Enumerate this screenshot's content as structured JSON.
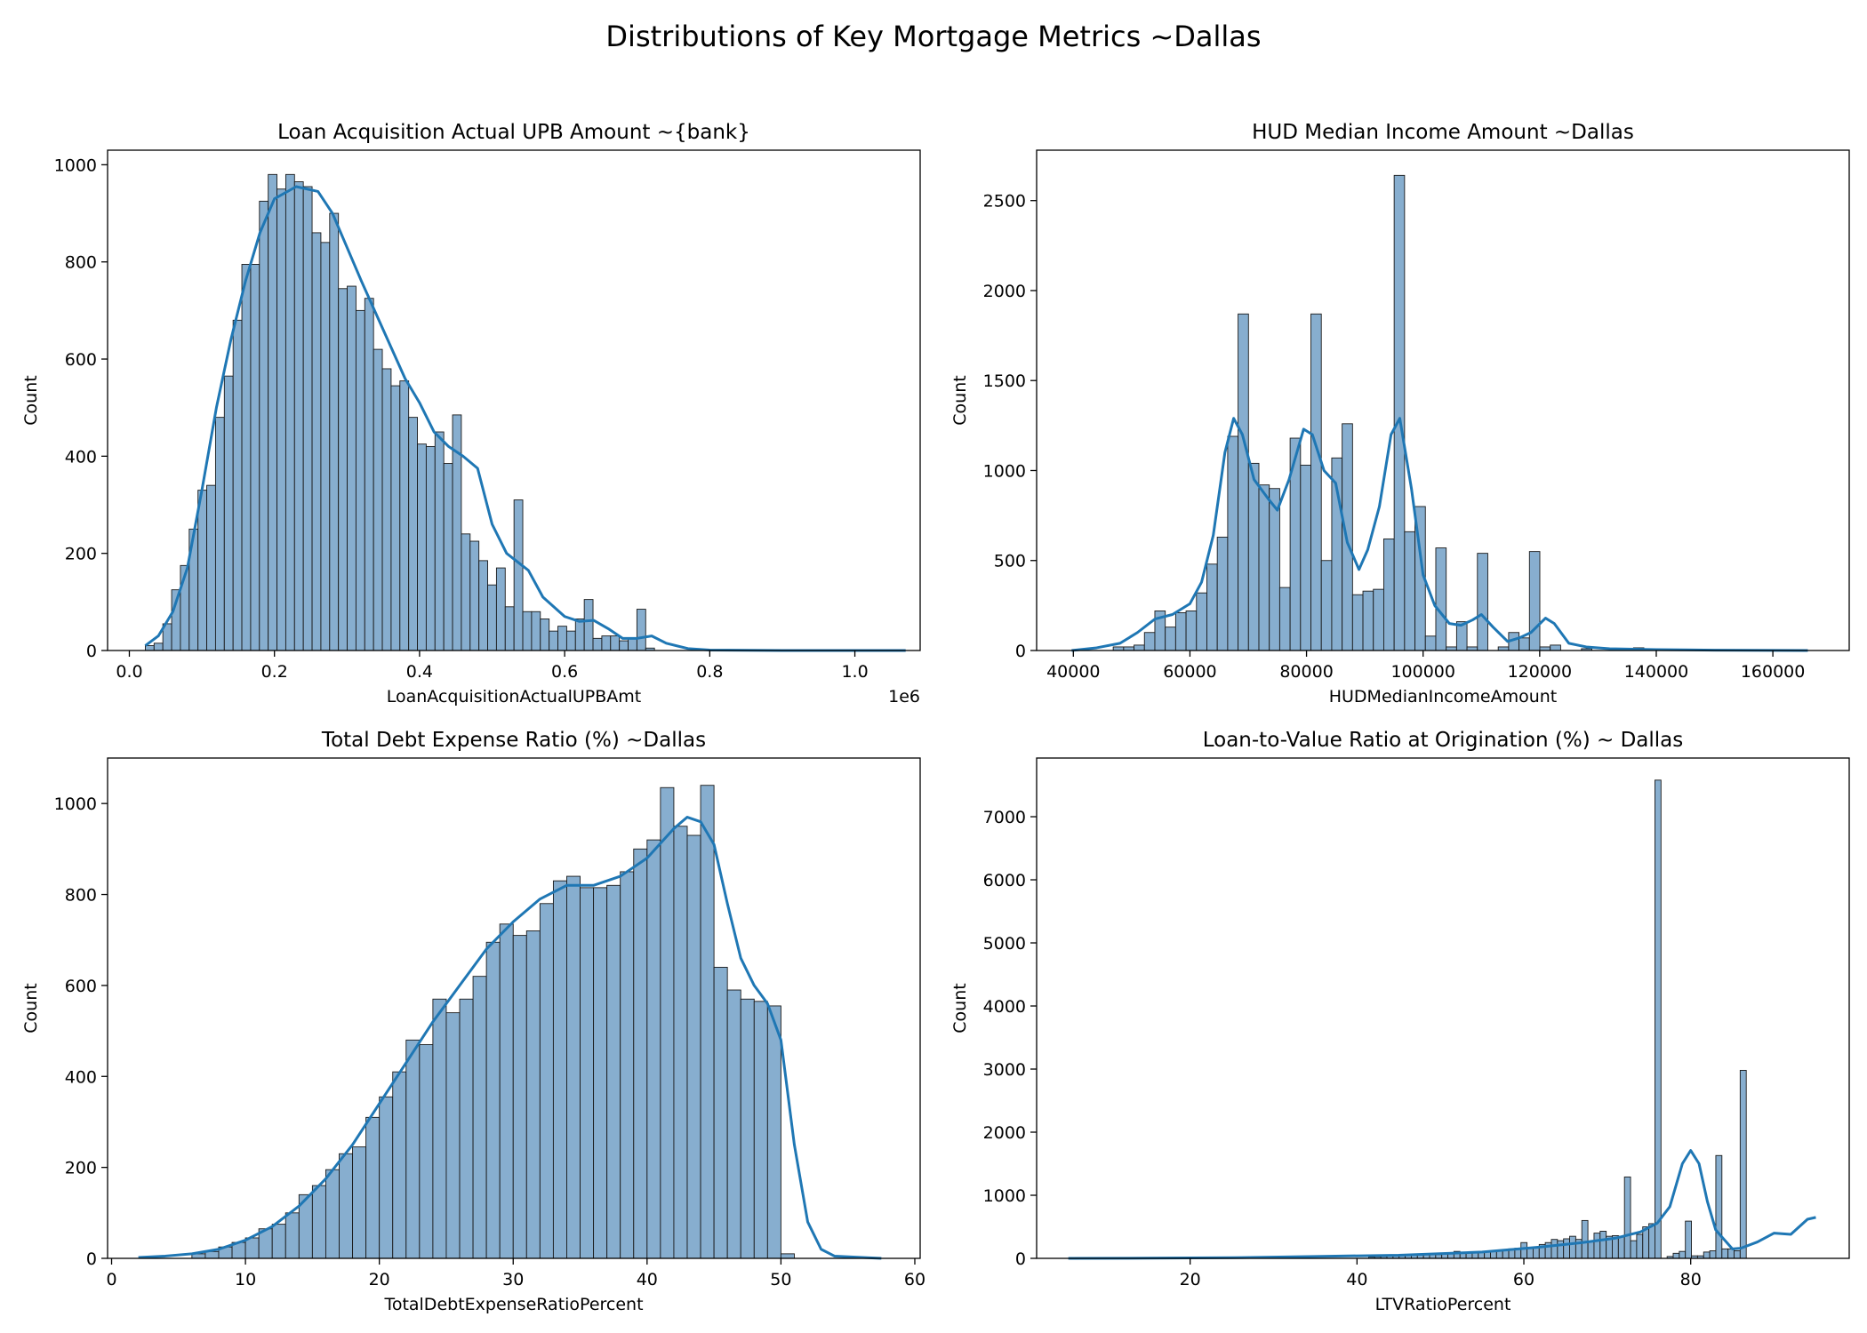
{
  "figure": {
    "suptitle": "Distributions of Key Mortgage Metrics ~Dallas"
  },
  "colors": {
    "bar_fill": "#87aecf",
    "bar_edge": "#1a1a1a",
    "kde": "#1f77b4"
  },
  "chart_data": [
    {
      "type": "bar",
      "title": "Loan Acquisition Actual UPB Amount ~{bank}",
      "xlabel": "LoanAcquisitionActualUPBAmt",
      "ylabel": "Count",
      "x_offset_label": "1e6",
      "xlim": [
        -0.03,
        1.09
      ],
      "ylim": [
        0,
        1030
      ],
      "xticks": [
        0,
        0.2,
        0.4,
        0.6,
        0.8,
        1.0
      ],
      "xtick_labels": [
        "0.0",
        "0.2",
        "0.4",
        "0.6",
        "0.8",
        "1.0"
      ],
      "yticks": [
        0,
        200,
        400,
        600,
        800,
        1000
      ],
      "ytick_labels": [
        "0",
        "200",
        "400",
        "600",
        "800",
        "1000"
      ],
      "bin_start": 0.022,
      "bin_width": 0.0121,
      "values": [
        10,
        15,
        55,
        125,
        175,
        250,
        330,
        340,
        480,
        565,
        680,
        795,
        795,
        925,
        980,
        950,
        980,
        965,
        955,
        860,
        840,
        900,
        745,
        750,
        700,
        725,
        620,
        580,
        545,
        555,
        480,
        425,
        420,
        450,
        385,
        485,
        240,
        225,
        185,
        135,
        170,
        90,
        310,
        80,
        80,
        65,
        40,
        50,
        40,
        65,
        105,
        25,
        30,
        30,
        20,
        25,
        85,
        5,
        0,
        0,
        0,
        0,
        0,
        0,
        0,
        0,
        0,
        0,
        0,
        0,
        0,
        0,
        0,
        0,
        0,
        0,
        0,
        0,
        0,
        0,
        0,
        0,
        0,
        0,
        0,
        0,
        0
      ],
      "kde": [
        [
          0.022,
          10
        ],
        [
          0.04,
          30
        ],
        [
          0.06,
          80
        ],
        [
          0.08,
          170
        ],
        [
          0.1,
          330
        ],
        [
          0.12,
          500
        ],
        [
          0.14,
          640
        ],
        [
          0.16,
          760
        ],
        [
          0.18,
          860
        ],
        [
          0.2,
          930
        ],
        [
          0.23,
          955
        ],
        [
          0.26,
          945
        ],
        [
          0.28,
          900
        ],
        [
          0.3,
          830
        ],
        [
          0.32,
          760
        ],
        [
          0.35,
          660
        ],
        [
          0.38,
          560
        ],
        [
          0.4,
          510
        ],
        [
          0.42,
          450
        ],
        [
          0.44,
          420
        ],
        [
          0.46,
          400
        ],
        [
          0.48,
          375
        ],
        [
          0.5,
          260
        ],
        [
          0.52,
          200
        ],
        [
          0.55,
          165
        ],
        [
          0.57,
          110
        ],
        [
          0.6,
          70
        ],
        [
          0.62,
          60
        ],
        [
          0.64,
          62
        ],
        [
          0.66,
          45
        ],
        [
          0.68,
          25
        ],
        [
          0.7,
          25
        ],
        [
          0.72,
          30
        ],
        [
          0.74,
          15
        ],
        [
          0.77,
          4
        ],
        [
          0.8,
          1
        ],
        [
          0.9,
          0
        ],
        [
          1.07,
          0
        ]
      ]
    },
    {
      "type": "bar",
      "title": "HUD Median Income Amount ~Dallas",
      "xlabel": "HUDMedianIncomeAmount",
      "ylabel": "Count",
      "xlim": [
        33700,
        173100
      ],
      "ylim": [
        0,
        2780
      ],
      "xticks": [
        40000,
        60000,
        80000,
        100000,
        120000,
        140000,
        160000
      ],
      "xtick_labels": [
        "40000",
        "60000",
        "80000",
        "100000",
        "120000",
        "140000",
        "160000"
      ],
      "yticks": [
        0,
        500,
        1000,
        1500,
        2000,
        2500
      ],
      "ytick_labels": [
        "0",
        "500",
        "1000",
        "1500",
        "2000",
        "2500"
      ],
      "bin_start": 39700,
      "bin_width": 1785,
      "values": [
        0,
        0,
        0,
        0,
        20,
        20,
        30,
        100,
        220,
        130,
        210,
        220,
        320,
        480,
        630,
        1190,
        1870,
        1040,
        920,
        900,
        350,
        1180,
        1030,
        1870,
        500,
        1070,
        1260,
        310,
        330,
        340,
        620,
        2640,
        660,
        800,
        80,
        570,
        20,
        160,
        20,
        540,
        0,
        20,
        100,
        70,
        550,
        20,
        30,
        0,
        0,
        10,
        0,
        0,
        0,
        0,
        15,
        0,
        0,
        0,
        0,
        0,
        0,
        0,
        0,
        0,
        0,
        0,
        0,
        0,
        0,
        0,
        0,
        0
      ],
      "kde": [
        [
          39700,
          0
        ],
        [
          44000,
          15
        ],
        [
          48000,
          40
        ],
        [
          51000,
          100
        ],
        [
          54000,
          175
        ],
        [
          57000,
          200
        ],
        [
          60000,
          260
        ],
        [
          62000,
          380
        ],
        [
          64000,
          640
        ],
        [
          66000,
          1100
        ],
        [
          67500,
          1290
        ],
        [
          69000,
          1200
        ],
        [
          71000,
          950
        ],
        [
          73500,
          840
        ],
        [
          75000,
          780
        ],
        [
          77000,
          950
        ],
        [
          79500,
          1230
        ],
        [
          81000,
          1200
        ],
        [
          83000,
          1000
        ],
        [
          85000,
          930
        ],
        [
          87000,
          600
        ],
        [
          89000,
          450
        ],
        [
          90500,
          560
        ],
        [
          92500,
          800
        ],
        [
          94500,
          1200
        ],
        [
          96000,
          1290
        ],
        [
          98000,
          900
        ],
        [
          100000,
          420
        ],
        [
          102000,
          250
        ],
        [
          104500,
          150
        ],
        [
          106500,
          140
        ],
        [
          108500,
          170
        ],
        [
          110000,
          200
        ],
        [
          112000,
          130
        ],
        [
          114500,
          50
        ],
        [
          116500,
          70
        ],
        [
          118500,
          100
        ],
        [
          121000,
          180
        ],
        [
          122500,
          150
        ],
        [
          125000,
          40
        ],
        [
          128000,
          20
        ],
        [
          132000,
          10
        ],
        [
          140000,
          5
        ],
        [
          150000,
          2
        ],
        [
          166000,
          0
        ]
      ]
    },
    {
      "type": "bar",
      "title": "Total Debt Expense Ratio (%) ~Dallas",
      "xlabel": "TotalDebtExpenseRatioPercent",
      "ylabel": "Count",
      "xlim": [
        -0.3,
        60.4
      ],
      "ylim": [
        0,
        1100
      ],
      "xticks": [
        0,
        10,
        20,
        30,
        40,
        50,
        60
      ],
      "xtick_labels": [
        "0",
        "10",
        "20",
        "30",
        "40",
        "50",
        "60"
      ],
      "yticks": [
        0,
        200,
        400,
        600,
        800,
        1000
      ],
      "ytick_labels": [
        "0",
        "200",
        "400",
        "600",
        "800",
        "1000"
      ],
      "bin_start": 6.0,
      "bin_width": 1.0,
      "values": [
        10,
        15,
        25,
        35,
        45,
        65,
        75,
        100,
        140,
        160,
        195,
        230,
        245,
        310,
        355,
        410,
        480,
        470,
        570,
        540,
        570,
        620,
        695,
        735,
        710,
        720,
        780,
        830,
        840,
        815,
        815,
        820,
        850,
        900,
        920,
        1035,
        950,
        930,
        1040,
        640,
        590,
        570,
        565,
        555,
        10
      ],
      "kde": [
        [
          2,
          2
        ],
        [
          4,
          5
        ],
        [
          6,
          10
        ],
        [
          8,
          20
        ],
        [
          10,
          40
        ],
        [
          12,
          70
        ],
        [
          14,
          115
        ],
        [
          16,
          175
        ],
        [
          18,
          250
        ],
        [
          20,
          340
        ],
        [
          22,
          430
        ],
        [
          24,
          520
        ],
        [
          26,
          600
        ],
        [
          28,
          680
        ],
        [
          30,
          740
        ],
        [
          32,
          790
        ],
        [
          34,
          820
        ],
        [
          36,
          820
        ],
        [
          38,
          840
        ],
        [
          40,
          880
        ],
        [
          42,
          945
        ],
        [
          43,
          970
        ],
        [
          44,
          960
        ],
        [
          45,
          910
        ],
        [
          46,
          780
        ],
        [
          47,
          660
        ],
        [
          48,
          600
        ],
        [
          49,
          560
        ],
        [
          50,
          480
        ],
        [
          51,
          250
        ],
        [
          52,
          80
        ],
        [
          53,
          20
        ],
        [
          54,
          5
        ],
        [
          57.5,
          0
        ]
      ]
    },
    {
      "type": "bar",
      "title": "Loan-to-Value Ratio at Origination (%) ~ Dallas",
      "xlabel": "LTVRatioPercent",
      "ylabel": "Count",
      "xlim": [
        1.6,
        99.0
      ],
      "ylim": [
        0,
        7930
      ],
      "xticks": [
        20,
        40,
        60,
        80
      ],
      "xtick_labels": [
        "20",
        "40",
        "60",
        "80"
      ],
      "yticks": [
        0,
        1000,
        2000,
        3000,
        4000,
        5000,
        6000,
        7000
      ],
      "ytick_labels": [
        "0",
        "1000",
        "2000",
        "3000",
        "4000",
        "5000",
        "6000",
        "7000"
      ],
      "bin_start": 41.4,
      "bin_width": 0.73,
      "values": [
        20,
        25,
        30,
        35,
        40,
        45,
        50,
        55,
        60,
        70,
        75,
        60,
        80,
        90,
        110,
        80,
        90,
        90,
        100,
        110,
        120,
        130,
        140,
        150,
        160,
        250,
        160,
        180,
        220,
        250,
        300,
        280,
        310,
        350,
        300,
        600,
        270,
        400,
        430,
        350,
        360,
        350,
        1290,
        280,
        380,
        500,
        550,
        7580,
        0,
        30,
        80,
        110,
        590,
        40,
        40,
        100,
        120,
        1630,
        150,
        150,
        120,
        2980
      ],
      "kde": [
        [
          5.4,
          0
        ],
        [
          15,
          3
        ],
        [
          25,
          10
        ],
        [
          35,
          30
        ],
        [
          45,
          50
        ],
        [
          55,
          100
        ],
        [
          62,
          180
        ],
        [
          67,
          250
        ],
        [
          71,
          320
        ],
        [
          74,
          420
        ],
        [
          76,
          560
        ],
        [
          77.5,
          820
        ],
        [
          79,
          1500
        ],
        [
          80,
          1710
        ],
        [
          81,
          1500
        ],
        [
          82,
          900
        ],
        [
          83,
          450
        ],
        [
          84,
          300
        ],
        [
          85,
          150
        ],
        [
          86,
          160
        ],
        [
          88,
          260
        ],
        [
          90,
          400
        ],
        [
          92,
          380
        ],
        [
          94,
          620
        ],
        [
          95,
          650
        ]
      ]
    }
  ]
}
